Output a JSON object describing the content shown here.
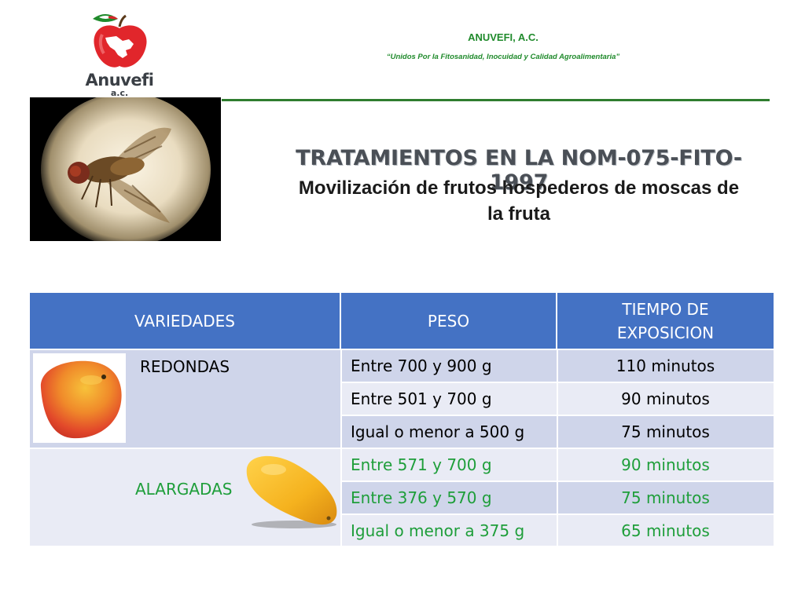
{
  "header": {
    "logo_text": "Anuvefi",
    "logo_sub": "a.c.",
    "org_name": "ANUVEFI, A.C.",
    "slogan": "“Unidos Por la Fitosanidad, Inocuidad y Calidad Agroalimentaria”"
  },
  "title": {
    "main": "TRATAMIENTOS EN LA NOM-075-FITO-1997",
    "sub_line1": "Movilización de frutos hospederos de moscas de",
    "sub_line2": "la fruta"
  },
  "icons": {
    "logo": "apple-mexico-logo-icon",
    "fly": "fruit-fly-photo",
    "round_mango": "round-mango-photo",
    "long_mango": "elongated-mango-photo"
  },
  "colors": {
    "header_bg": "#4472c4",
    "row_dark": "#cfd5ea",
    "row_light": "#e9ebf5",
    "green_text": "#1e9e3a",
    "org_green": "#1f8a2b"
  },
  "table": {
    "headers": {
      "variedades": "VARIEDADES",
      "peso": "PESO",
      "tiempo_line1": "TIEMPO DE",
      "tiempo_line2": "EXPOSICION"
    },
    "groups": [
      {
        "variety": "REDONDAS",
        "rows": [
          {
            "peso": "Entre 700 y 900 g",
            "tiempo": "110 minutos"
          },
          {
            "peso": "Entre 501 y 700 g",
            "tiempo": "90 minutos"
          },
          {
            "peso": "Igual o menor a 500 g",
            "tiempo": "75 minutos"
          }
        ]
      },
      {
        "variety": "ALARGADAS",
        "rows": [
          {
            "peso": "Entre 571 y 700 g",
            "tiempo": "90 minutos"
          },
          {
            "peso": "Entre 376 y 570 g",
            "tiempo": "75 minutos"
          },
          {
            "peso": "Igual o menor a 375 g",
            "tiempo": "65 minutos"
          }
        ]
      }
    ]
  }
}
